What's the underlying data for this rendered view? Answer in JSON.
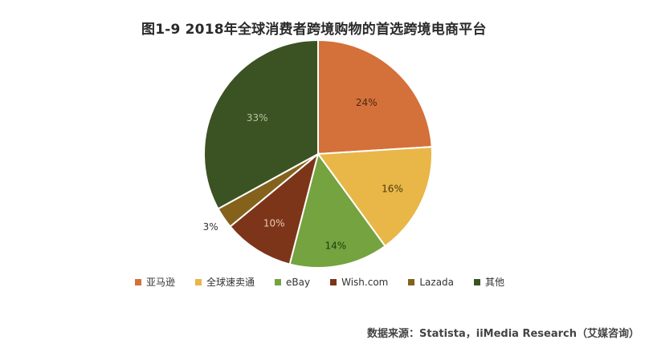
{
  "chart_data": {
    "type": "pie",
    "title": "图1-9  2018年全球消费者跨境购物的首选跨境电商平台",
    "categories": [
      "亚马逊",
      "全球速卖通",
      "eBay",
      "Wish.com",
      "Lazada",
      "其他"
    ],
    "values": [
      24,
      16,
      14,
      10,
      3,
      33
    ],
    "labels": [
      "24%",
      "16%",
      "14%",
      "10%",
      "3%",
      "33%"
    ],
    "colors": [
      "#d4703a",
      "#e9b648",
      "#74a33f",
      "#7d3519",
      "#84621c",
      "#3b5322"
    ],
    "legend_position": "bottom",
    "source": "数据来源：Statista，iiMedia Research（艾媒咨询）"
  }
}
